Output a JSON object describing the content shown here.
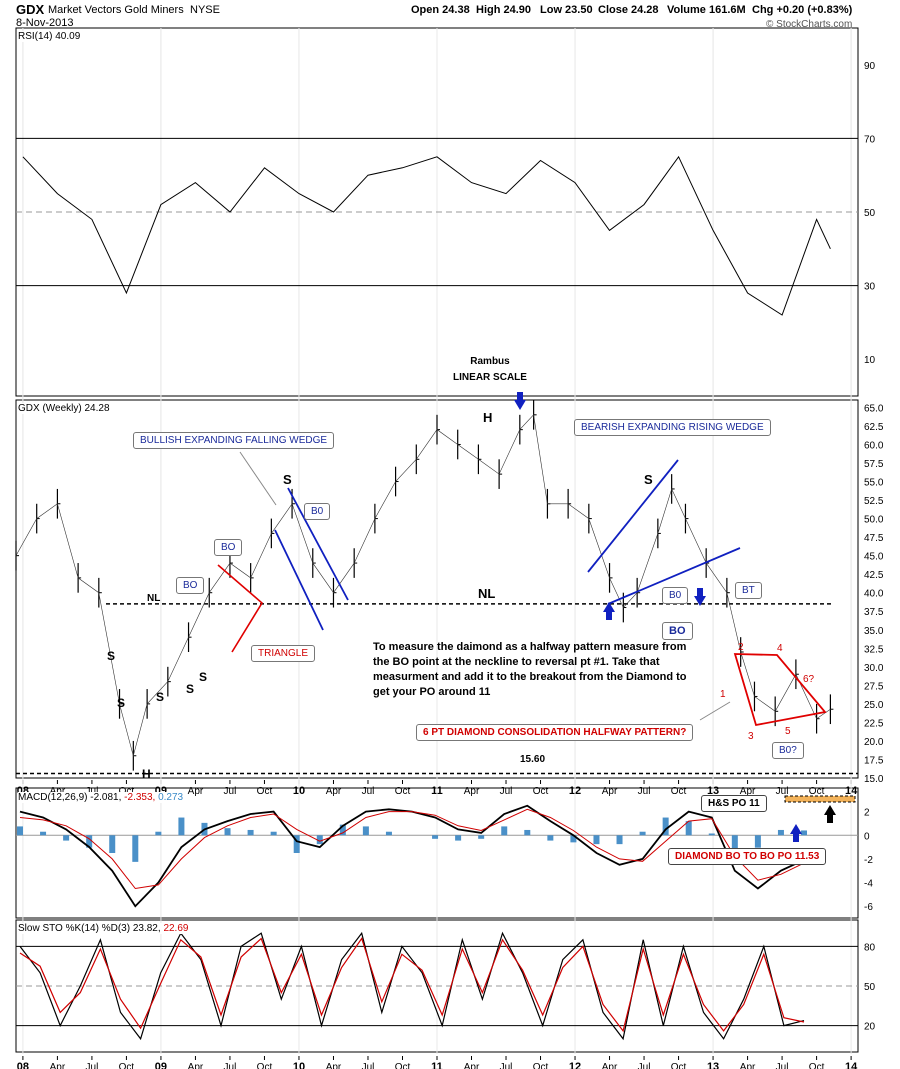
{
  "header": {
    "symbol": "GDX",
    "name": "Market Vectors Gold Miners",
    "exchange": "NYSE",
    "date": "8-Nov-2013",
    "open": "Open 24.38",
    "high": "High 24.90",
    "low": "Low 23.50",
    "close": "Close 24.28",
    "volume": "Volume 161.6M",
    "chg": "Chg +0.20 (+0.83%)",
    "credit": "© StockCharts.com"
  },
  "rsi_label": "RSI(14) 40.09",
  "price_label": "GDX (Weekly) 24.28",
  "macd_label": {
    "base": "MACD(12,26,9) -2.081,",
    "sig": "-2.353,",
    "hist": "0.273"
  },
  "sto_label": {
    "base": "Slow STO %K(14) %D(3) 23.82,",
    "d": "22.69"
  },
  "x_axis_labels": [
    "08",
    "Apr",
    "Jul",
    "Oct",
    "09",
    "Apr",
    "Jul",
    "Oct",
    "10",
    "Apr",
    "Jul",
    "Oct",
    "11",
    "Apr",
    "Jul",
    "Oct",
    "12",
    "Apr",
    "Jul",
    "Oct",
    "13",
    "Apr",
    "Jul",
    "Oct",
    "14"
  ],
  "annotations": {
    "rambus": "Rambus",
    "linear": "LINEAR SCALE",
    "bullish_wedge": "BULLISH EXPANDING FALLING WEDGE",
    "bearish_wedge": "BEARISH EXPANDING RISING WEDGE",
    "nl_left": "NL",
    "nl_mid": "NL",
    "triangle": "TRIANGLE",
    "bo1": "BO",
    "bo2": "BO",
    "bo3": "B0",
    "bo4": "B0",
    "bo5": "BO",
    "bt": "BT",
    "bo_q": "B0?",
    "h_top": "H",
    "h_bottom": "H",
    "s1": "S",
    "s2": "S",
    "s3": "S",
    "s4": "S",
    "s5": "S",
    "s6": "S",
    "s_left_top": "S",
    "low_value": "15.60",
    "note": "To measure the daimond as a halfway pattern measure from the BO point at the neckline to reversal pt #1. Take that measurment and add it to the breakout from the Diamond to get your PO around 11",
    "diamond": "6 PT DIAMOND CONSOLIDATION HALFWAY PATTERN?",
    "hs_po": "H&S PO 11",
    "diamond_po": "DIAMOND BO TO BO PO 11.53",
    "pt1": "1",
    "pt2": "2",
    "pt3": "3",
    "pt4": "4",
    "pt5": "5",
    "pt6": "6?"
  },
  "chart_data": [
    {
      "type": "line",
      "title": "RSI(14) 40.09",
      "ylim": [
        0,
        100
      ],
      "yticks": [
        10,
        30,
        50,
        70,
        90
      ],
      "reference_lines": [
        30,
        50,
        70
      ],
      "x": [
        2008.0,
        2008.25,
        2008.5,
        2008.75,
        2009.0,
        2009.25,
        2009.5,
        2009.75,
        2010.0,
        2010.25,
        2010.5,
        2010.75,
        2011.0,
        2011.25,
        2011.5,
        2011.75,
        2012.0,
        2012.25,
        2012.5,
        2012.75,
        2013.0,
        2013.25,
        2013.5,
        2013.75,
        2013.85
      ],
      "values": [
        65,
        55,
        48,
        28,
        52,
        58,
        50,
        62,
        55,
        50,
        60,
        62,
        65,
        58,
        55,
        64,
        58,
        45,
        52,
        65,
        45,
        28,
        22,
        48,
        40
      ]
    },
    {
      "type": "bar",
      "title": "GDX (Weekly) 24.28",
      "ylim": [
        15,
        66
      ],
      "yticks": [
        15.0,
        17.5,
        20.0,
        22.5,
        25.0,
        27.5,
        30.0,
        32.5,
        35.0,
        37.5,
        40.0,
        42.5,
        45.0,
        47.5,
        50.0,
        52.5,
        55.0,
        57.5,
        60.0,
        62.5,
        65.0
      ],
      "reference_lines": [
        38.5,
        15.6
      ],
      "x": [
        2007.95,
        2008.1,
        2008.25,
        2008.4,
        2008.55,
        2008.7,
        2008.8,
        2008.9,
        2009.05,
        2009.2,
        2009.35,
        2009.5,
        2009.65,
        2009.8,
        2009.95,
        2010.1,
        2010.25,
        2010.4,
        2010.55,
        2010.7,
        2010.85,
        2011.0,
        2011.15,
        2011.3,
        2011.45,
        2011.6,
        2011.7,
        2011.8,
        2011.95,
        2012.1,
        2012.25,
        2012.35,
        2012.45,
        2012.6,
        2012.7,
        2012.8,
        2012.95,
        2013.1,
        2013.2,
        2013.3,
        2013.45,
        2013.6,
        2013.75,
        2013.85
      ],
      "values": [
        45,
        50,
        52,
        42,
        40,
        25,
        18,
        25,
        28,
        34,
        40,
        44,
        42,
        48,
        52,
        44,
        40,
        44,
        50,
        55,
        58,
        62,
        60,
        58,
        56,
        62,
        64,
        52,
        52,
        50,
        42,
        38,
        40,
        48,
        54,
        50,
        44,
        40,
        32,
        26,
        24,
        29,
        23,
        24.28
      ]
    },
    {
      "type": "line",
      "title": "MACD(12,26,9) -2.081, -2.353, 0.273",
      "ylim": [
        -7,
        4
      ],
      "yticks": [
        -6,
        -4,
        -2,
        0,
        2
      ],
      "series": [
        {
          "values": [
            2,
            1.5,
            0.5,
            -1,
            -3,
            -6,
            -4,
            -1,
            0.5,
            1.2,
            1.8,
            2,
            -0.5,
            -1,
            0.8,
            2,
            2.2,
            2,
            1.5,
            0.5,
            0.2,
            1.8,
            2.5,
            1.2,
            0,
            -1.5,
            -2.5,
            -2,
            0.5,
            2,
            1.5,
            -3,
            -4.5,
            -3,
            -2.081
          ]
        },
        {
          "values": [
            1.5,
            1.3,
            0.8,
            -0.3,
            -2,
            -4.5,
            -4.2,
            -2,
            -0.2,
            0.8,
            1.5,
            1.8,
            0.5,
            -0.5,
            0.2,
            1.5,
            2,
            2,
            1.7,
            0.8,
            0.4,
            1.3,
            2.2,
            1.5,
            0.4,
            -1,
            -2,
            -2.2,
            -0.5,
            1.2,
            1.4,
            -1.8,
            -3.8,
            -3.3,
            -2.353
          ]
        }
      ]
    },
    {
      "type": "line",
      "title": "Slow STO %K(14) %D(3) 23.82, 22.69",
      "ylim": [
        0,
        100
      ],
      "yticks": [
        20,
        50,
        80
      ],
      "reference_lines": [
        20,
        50,
        80
      ],
      "series": [
        {
          "values": [
            80,
            60,
            20,
            50,
            85,
            30,
            10,
            60,
            90,
            70,
            20,
            80,
            90,
            40,
            80,
            20,
            70,
            90,
            30,
            80,
            60,
            20,
            85,
            40,
            90,
            60,
            20,
            70,
            85,
            30,
            10,
            85,
            20,
            80,
            30,
            10,
            40,
            80,
            20,
            23.82
          ]
        },
        {
          "values": [
            75,
            65,
            30,
            45,
            78,
            40,
            18,
            52,
            85,
            72,
            28,
            72,
            86,
            45,
            74,
            28,
            64,
            86,
            38,
            74,
            62,
            28,
            78,
            45,
            85,
            62,
            28,
            64,
            80,
            36,
            16,
            78,
            28,
            74,
            36,
            16,
            36,
            74,
            26,
            22.69
          ]
        }
      ]
    }
  ]
}
